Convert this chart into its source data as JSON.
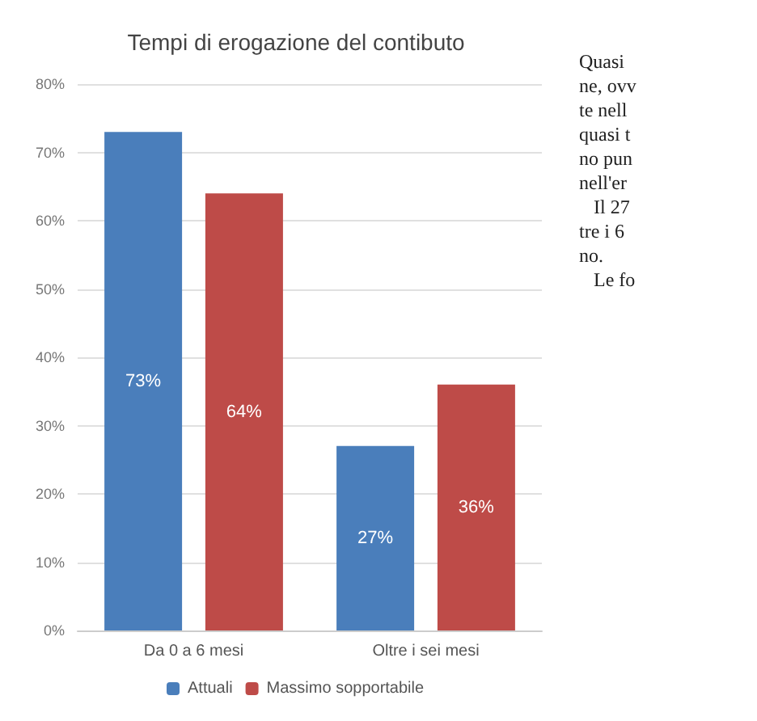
{
  "chart_data": {
    "type": "bar",
    "title": "Tempi di erogazione del contibuto",
    "categories": [
      "Da 0 a 6 mesi",
      "Oltre i sei mesi"
    ],
    "series": [
      {
        "name": "Attuali",
        "color": "#4a7ebb",
        "values": [
          73,
          27
        ],
        "value_labels": [
          "73%",
          "27%"
        ]
      },
      {
        "name": "Massimo sopportabile",
        "color": "#be4b48",
        "values": [
          64,
          36
        ],
        "value_labels": [
          "64%",
          "36%"
        ]
      }
    ],
    "ylim": [
      0,
      80
    ],
    "yticks": [
      {
        "value": 0,
        "label": "0%"
      },
      {
        "value": 10,
        "label": "10%"
      },
      {
        "value": 20,
        "label": "20%"
      },
      {
        "value": 30,
        "label": "30%"
      },
      {
        "value": 40,
        "label": "40%"
      },
      {
        "value": 50,
        "label": "50%"
      },
      {
        "value": 60,
        "label": "60%"
      },
      {
        "value": 70,
        "label": "70%"
      },
      {
        "value": 80,
        "label": "80%"
      }
    ],
    "grid": "y",
    "legend": "bottom",
    "annotations": [
      "Quasi",
      "ne, ovv",
      "te nell",
      "quasi t",
      "no pun",
      "nell'er",
      "   Il 27",
      "tre i 6",
      "no.",
      "   Le fo"
    ]
  }
}
